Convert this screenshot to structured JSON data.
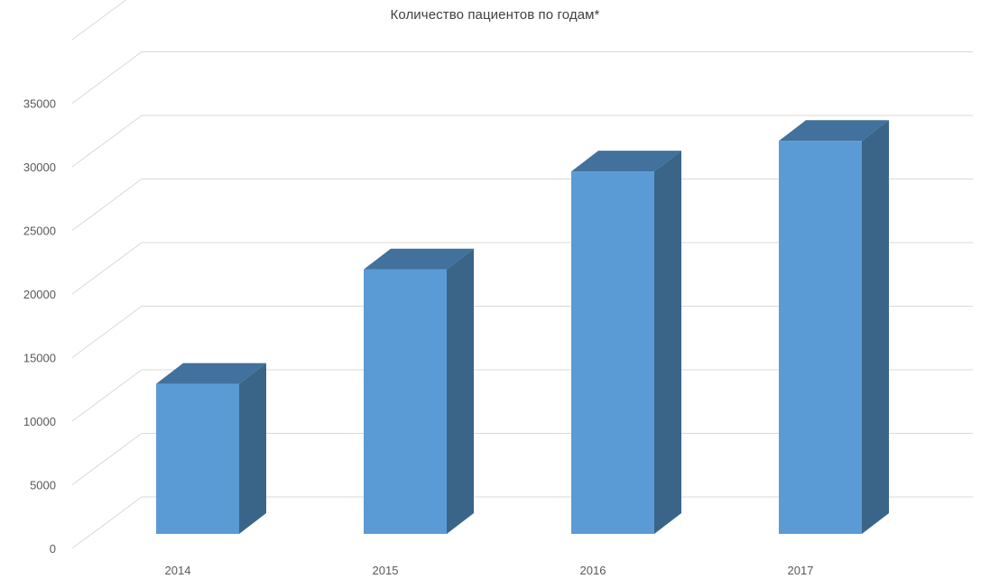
{
  "chart_data": {
    "type": "bar",
    "title": "Количество пациентов по годам*",
    "categories": [
      "2014",
      "2015",
      "2016",
      "2017"
    ],
    "series": [
      {
        "values": [
          11800,
          20800,
          28500,
          30900
        ]
      }
    ],
    "xlabel": "",
    "ylabel": "",
    "ylim": [
      0,
      35000
    ],
    "yticks": [
      0,
      5000,
      10000,
      15000,
      20000,
      25000,
      30000,
      35000
    ],
    "grid": true,
    "style": "3d-column",
    "colors": {
      "bar_front": "#5b9bd5",
      "bar_top": "#41719c",
      "bar_side": "#3a6589",
      "grid": "#d9d9d9",
      "tick_text": "#595959"
    }
  }
}
